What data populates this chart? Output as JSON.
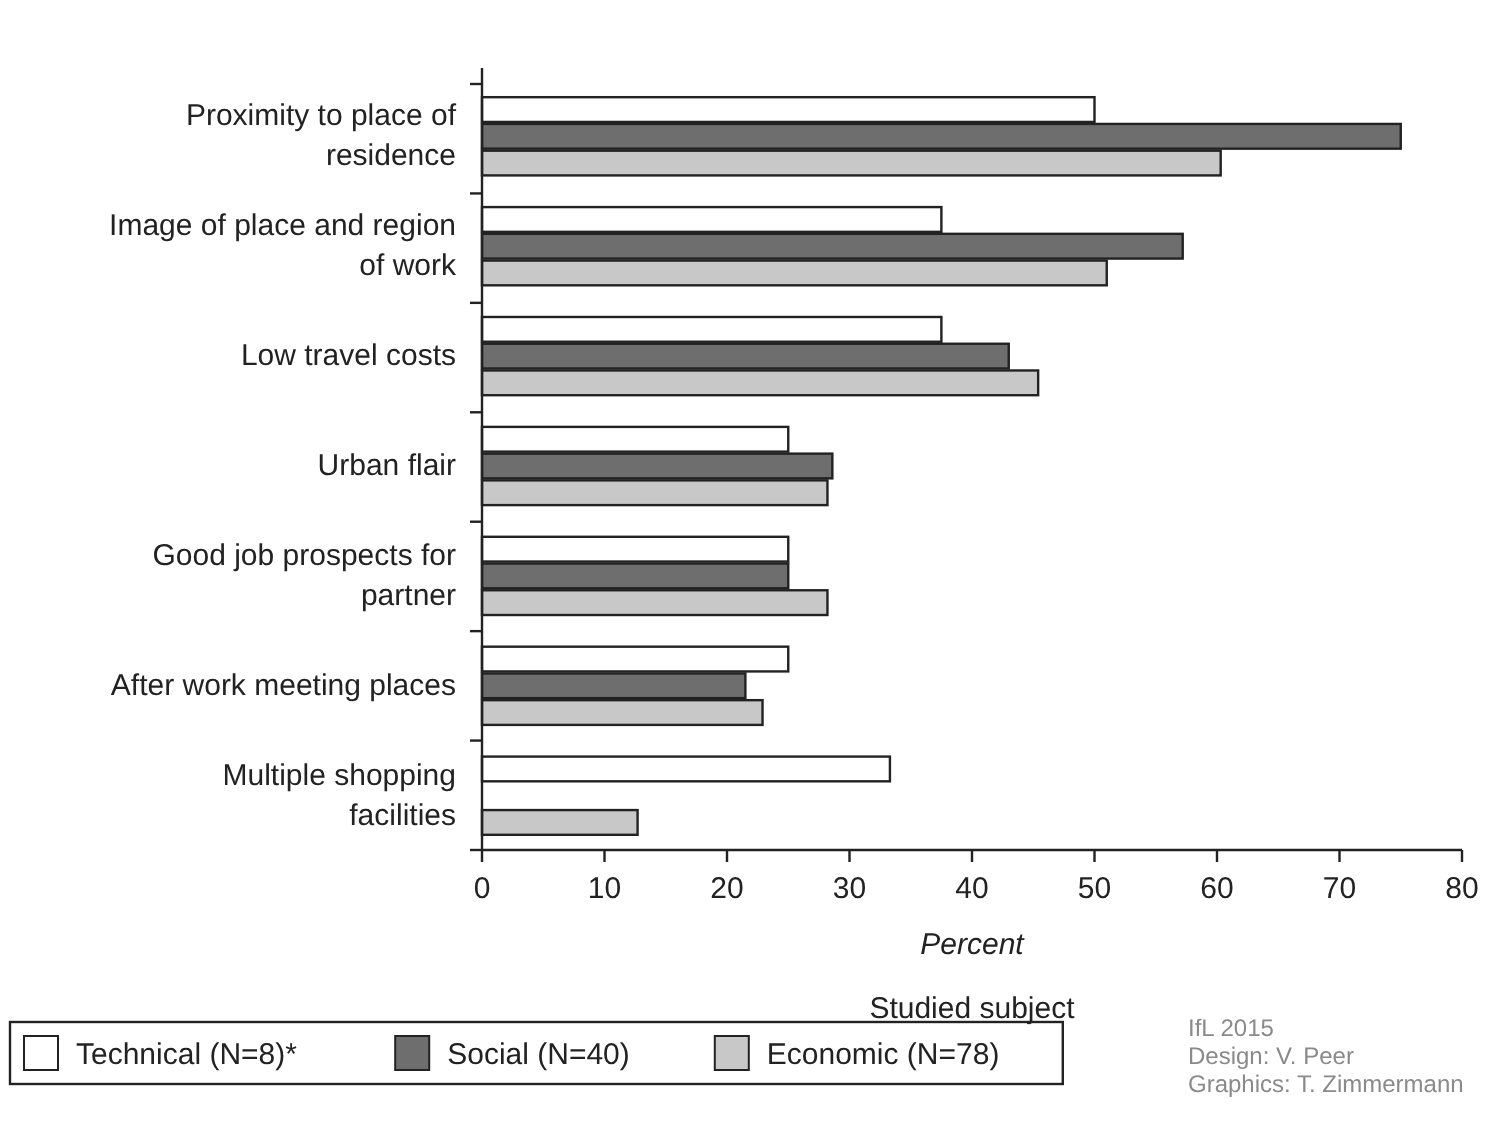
{
  "chart_data": {
    "type": "bar",
    "orientation": "horizontal",
    "xlabel": "Percent",
    "legend_title": "Studied subject",
    "legend": "bottom",
    "categories": [
      "Proximity to place of residence",
      "Image of place and region of work",
      "Low travel costs",
      "Urban flair",
      "Good job prospects for partner",
      "After work meeting places",
      "Multiple shopping facilities"
    ],
    "series": [
      {
        "name": "Technical (N=8)*",
        "color": "#ffffff",
        "values": [
          50,
          37.5,
          37.5,
          25,
          25,
          25,
          33.3
        ]
      },
      {
        "name": "Social (N=40)",
        "color": "#6e6e6e",
        "values": [
          75,
          57.2,
          43,
          28.6,
          25,
          21.5,
          null
        ]
      },
      {
        "name": "Economic (N=78)",
        "color": "#c8c8c8",
        "values": [
          60.3,
          51,
          45.4,
          28.2,
          28.2,
          22.9,
          12.7
        ]
      }
    ],
    "xlim": [
      0,
      80
    ],
    "xticks": [
      0,
      10,
      20,
      30,
      40,
      50,
      60,
      70,
      80
    ],
    "annotations": [
      "IfL 2015",
      "Design: V. Peer",
      "Graphics: T. Zimmermann"
    ]
  }
}
